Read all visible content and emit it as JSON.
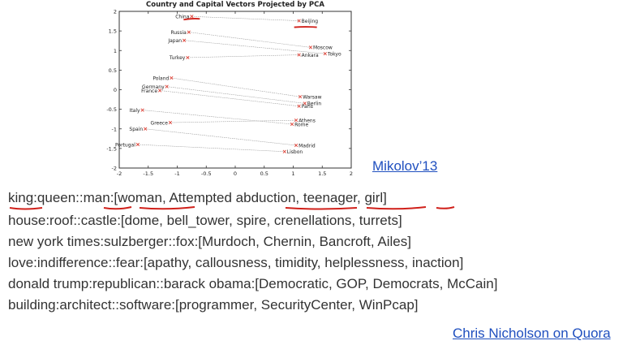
{
  "chart_data": {
    "type": "scatter",
    "title": "Country and Capital Vectors Projected by PCA",
    "xlim": [
      -2,
      2
    ],
    "ylim": [
      -2,
      2
    ],
    "x_ticks": [
      "-2",
      "-1.5",
      "-1",
      "-0.5",
      "0",
      "0.5",
      "1",
      "1.5",
      "2"
    ],
    "y_ticks": [
      "2",
      "1.5",
      "1",
      "0.5",
      "0",
      "-0.5",
      "-1",
      "-1.5",
      "-2"
    ],
    "grid": false,
    "points": [
      {
        "label": "China",
        "x": -0.75,
        "y": 1.87
      },
      {
        "label": "Beijing",
        "x": 1.1,
        "y": 1.76
      },
      {
        "label": "Russia",
        "x": -0.8,
        "y": 1.47
      },
      {
        "label": "Moscow",
        "x": 1.3,
        "y": 1.08
      },
      {
        "label": "Japan",
        "x": -0.88,
        "y": 1.26
      },
      {
        "label": "Tokyo",
        "x": 1.55,
        "y": 0.92
      },
      {
        "label": "Turkey",
        "x": -0.82,
        "y": 0.82
      },
      {
        "label": "Ankara",
        "x": 1.1,
        "y": 0.89
      },
      {
        "label": "Poland",
        "x": -1.1,
        "y": 0.3
      },
      {
        "label": "Warsaw",
        "x": 1.12,
        "y": -0.18
      },
      {
        "label": "Germany",
        "x": -1.18,
        "y": 0.08
      },
      {
        "label": "Berlin",
        "x": 1.2,
        "y": -0.35
      },
      {
        "label": "France",
        "x": -1.3,
        "y": -0.02
      },
      {
        "label": "Paris",
        "x": 1.1,
        "y": -0.42
      },
      {
        "label": "Italy",
        "x": -1.6,
        "y": -0.52
      },
      {
        "label": "Rome",
        "x": 0.98,
        "y": -0.88
      },
      {
        "label": "Greece",
        "x": -1.12,
        "y": -0.84
      },
      {
        "label": "Athens",
        "x": 1.05,
        "y": -0.78
      },
      {
        "label": "Spain",
        "x": -1.55,
        "y": -1.0
      },
      {
        "label": "Madrid",
        "x": 1.05,
        "y": -1.42
      },
      {
        "label": "Portugal",
        "x": -1.68,
        "y": -1.4
      },
      {
        "label": "Lisbon",
        "x": 0.85,
        "y": -1.58
      }
    ],
    "pairs": [
      [
        "China",
        "Beijing"
      ],
      [
        "Russia",
        "Moscow"
      ],
      [
        "Japan",
        "Tokyo"
      ],
      [
        "Turkey",
        "Ankara"
      ],
      [
        "Poland",
        "Warsaw"
      ],
      [
        "Germany",
        "Berlin"
      ],
      [
        "France",
        "Paris"
      ],
      [
        "Italy",
        "Rome"
      ],
      [
        "Greece",
        "Athens"
      ],
      [
        "Spain",
        "Madrid"
      ],
      [
        "Portugal",
        "Lisbon"
      ]
    ],
    "marker_color": "#e0453a",
    "line_color": "#9a9a9a",
    "annotation_color": "#d0201a"
  },
  "citation_mikolov": "Mikolov’13",
  "analogies": [
    "king:queen::man:[woman, Attempted abduction, teenager, girl]",
    "house:roof::castle:[dome, bell_tower, spire, crenellations, turrets]",
    "new york times:sulzberger::fox:[Murdoch, Chernin, Bancroft, Ailes]",
    "love:indifference::fear:[apathy, callousness, timidity, helplessness, inaction]",
    "donald trump:republican::barack obama:[Democratic, GOP, Democrats, McCain]",
    "building:architect::software:[programmer, SecurityCenter, WinPcap]"
  ],
  "citation_quora": "Chris Nicholson on Quora",
  "text_color": "#333333",
  "link_color": "#1f4fbf"
}
